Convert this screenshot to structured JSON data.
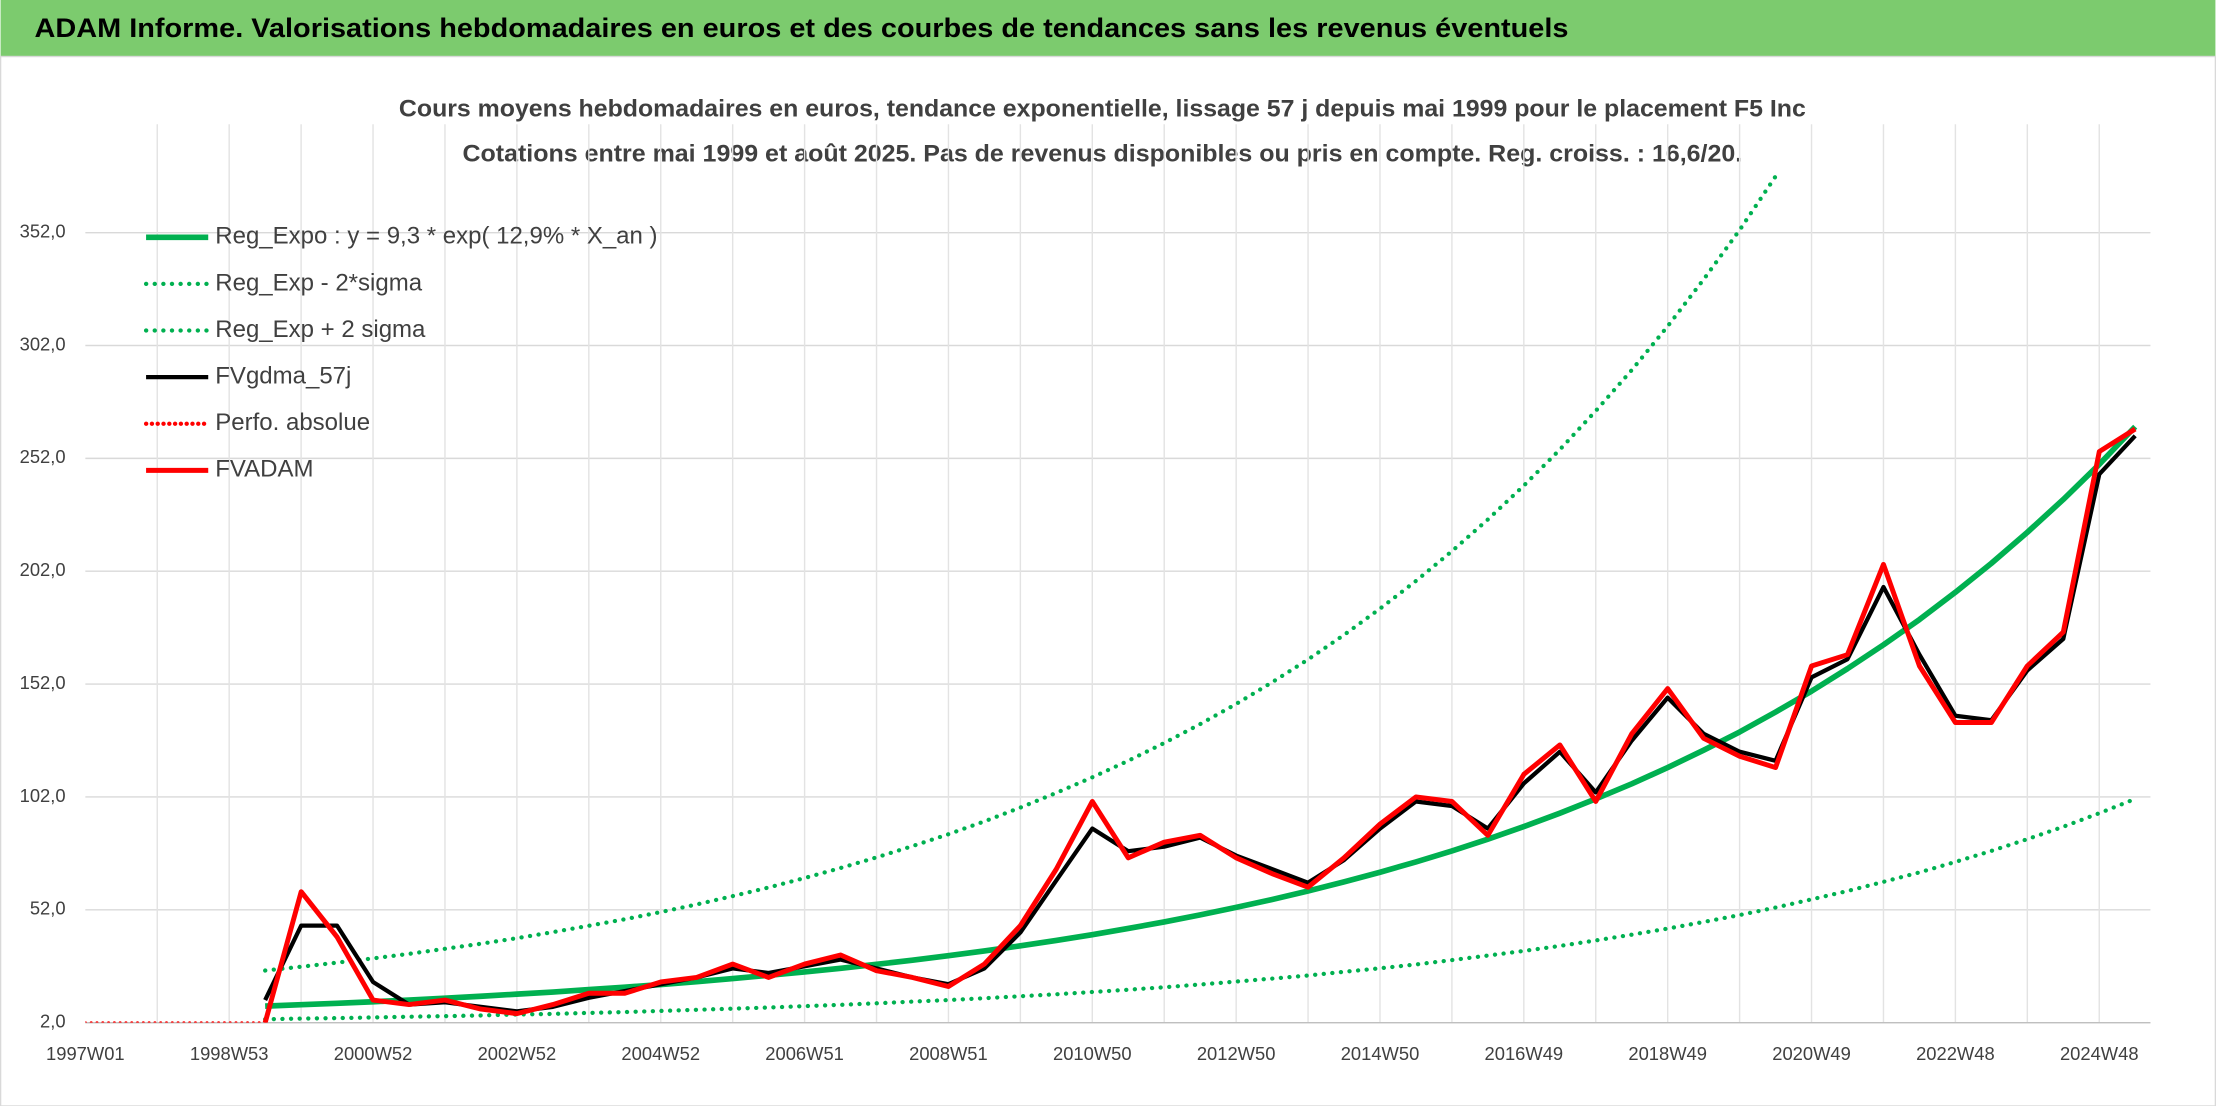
{
  "header": {
    "title": "ADAM Informe. Valorisations hebdomadaires en euros et des courbes de tendances sans les revenus éventuels"
  },
  "chart_data": {
    "type": "line",
    "title": "Cours moyens hebdomadaires en euros, tendance exponentielle, lissage 57 j depuis mai 1999 pour le placement F5 Inc",
    "subtitle": "Cotations entre mai 1999 et août 2025. Pas de revenus disponibles ou pris en compte. Reg. croiss. : 16,6/20.",
    "categories": [
      "1997W01",
      null,
      null,
      null,
      "1998W53",
      null,
      null,
      null,
      "2000W52",
      null,
      null,
      null,
      "2002W52",
      null,
      null,
      null,
      "2004W52",
      null,
      null,
      null,
      "2006W51",
      null,
      null,
      null,
      "2008W51",
      null,
      null,
      null,
      "2010W50",
      null,
      null,
      null,
      "2012W50",
      null,
      null,
      null,
      "2014W50",
      null,
      null,
      null,
      "2016W49",
      null,
      null,
      null,
      "2018W49",
      null,
      null,
      null,
      "2020W49",
      null,
      null,
      null,
      "2022W48",
      null,
      null,
      null,
      "2024W48",
      null
    ],
    "ylim": [
      2,
      400
    ],
    "yticks": [
      {
        "value": 2,
        "label": "2,0"
      },
      {
        "value": 52,
        "label": "52,0"
      },
      {
        "value": 102,
        "label": "102,0"
      },
      {
        "value": 152,
        "label": "152,0"
      },
      {
        "value": 202,
        "label": "202,0"
      },
      {
        "value": 252,
        "label": "252,0"
      },
      {
        "value": 302,
        "label": "302,0"
      },
      {
        "value": 352,
        "label": "352,0"
      }
    ],
    "grid": true,
    "legend": "top-left",
    "series": [
      {
        "name": "Reg_Expo : y = 9,3 * exp( 12,9% *  X_an )",
        "color": "#00b050",
        "dash": "solid",
        "width": 4,
        "values": [
          null,
          null,
          null,
          null,
          null,
          9.3,
          9.92,
          10.58,
          11.28,
          12.04,
          12.84,
          13.69,
          14.61,
          15.58,
          16.62,
          17.72,
          18.9,
          20.16,
          21.51,
          22.94,
          24.47,
          26.1,
          27.84,
          29.69,
          31.67,
          33.78,
          36.03,
          38.43,
          40.99,
          43.72,
          46.63,
          49.74,
          53.05,
          56.58,
          60.35,
          64.37,
          68.66,
          73.23,
          78.11,
          83.31,
          88.86,
          94.78,
          101.1,
          107.8,
          115,
          122.7,
          130.8,
          139.6,
          148.9,
          158.8,
          169.4,
          180.6,
          192.7,
          205.5,
          219.2,
          233.8,
          249.4,
          266
        ]
      },
      {
        "name": "Reg_Exp - 2*sigma",
        "color": "#00b050",
        "dash": "dotted",
        "width": 3,
        "values": [
          null,
          null,
          null,
          null,
          null,
          3.5,
          3.8,
          4.0,
          4.3,
          4.6,
          4.9,
          5.2,
          5.6,
          5.9,
          6.3,
          6.7,
          7.2,
          7.7,
          8.2,
          8.7,
          9.3,
          9.9,
          10.6,
          11.3,
          12.0,
          12.8,
          13.7,
          14.6,
          15.6,
          16.6,
          17.7,
          18.9,
          20.2,
          21.5,
          22.9,
          24.5,
          26.1,
          27.8,
          29.7,
          31.7,
          33.8,
          36.0,
          38.4,
          41.0,
          43.7,
          46.6,
          49.7,
          53.0,
          56.6,
          60.3,
          64.4,
          68.6,
          73.2,
          78.1,
          83.3,
          88.8,
          94.8,
          101.1
        ]
      },
      {
        "name": "Reg_Exp + 2 sigma",
        "color": "#00b050",
        "dash": "dotted",
        "width": 3,
        "values": [
          null,
          null,
          null,
          null,
          null,
          25.1,
          26.8,
          28.6,
          30.5,
          32.5,
          34.7,
          37.0,
          39.4,
          42.1,
          44.9,
          47.8,
          51.0,
          54.4,
          58.1,
          61.9,
          66.1,
          70.5,
          75.2,
          80.2,
          85.5,
          91.2,
          97.3,
          103.8,
          110.7,
          118.0,
          125.9,
          134.3,
          143.2,
          152.8,
          162.9,
          173.8,
          185.4,
          197.7,
          210.9,
          224.9,
          239.9,
          255.9,
          273.0,
          291.1,
          310.5,
          331.3,
          353.2,
          376.9,
          null,
          null,
          null,
          null,
          null,
          null,
          null,
          null,
          null,
          null
        ]
      },
      {
        "name": "FVgdma_57j",
        "color": "#000000",
        "dash": "solid",
        "width": 3,
        "values": [
          null,
          null,
          null,
          null,
          null,
          12,
          45,
          45,
          20,
          10,
          11,
          9,
          7,
          9,
          13,
          16,
          19,
          22,
          26,
          24,
          27,
          30,
          26,
          22,
          19,
          26,
          42,
          65,
          88,
          78,
          80,
          84,
          76,
          70,
          64,
          74,
          88,
          100,
          98,
          88,
          108,
          122,
          104,
          127,
          146,
          130,
          122,
          118,
          155,
          163,
          195,
          165,
          138,
          136,
          158,
          172,
          245,
          262
        ]
      },
      {
        "name": "Perfo. absolue",
        "color": "#ff0000",
        "dash": "dotted",
        "width": 2,
        "values": [
          2,
          2,
          2,
          2,
          2,
          2,
          null,
          null,
          null,
          null,
          null,
          null,
          null,
          null,
          null,
          null,
          null,
          null,
          null,
          null,
          null,
          null,
          null,
          null,
          null,
          null,
          null,
          null,
          null,
          null,
          null,
          null,
          null,
          null,
          null,
          null,
          null,
          null,
          null,
          null,
          null,
          null,
          null,
          null,
          null,
          null,
          null,
          null,
          null,
          null,
          null,
          null,
          null,
          null,
          null,
          null,
          null,
          null
        ]
      },
      {
        "name": "FVADAM",
        "color": "#ff0000",
        "dash": "solid",
        "width": 3.5,
        "values": [
          null,
          null,
          null,
          null,
          null,
          2,
          60,
          40,
          12,
          10,
          12,
          8,
          6,
          10,
          15,
          15,
          20,
          22,
          28,
          22,
          28,
          32,
          25,
          22,
          18,
          28,
          45,
          70,
          100,
          75,
          82,
          85,
          75,
          68,
          62,
          75,
          90,
          102,
          100,
          85,
          112,
          125,
          100,
          130,
          150,
          128,
          120,
          115,
          160,
          165,
          205,
          160,
          135,
          135,
          160,
          175,
          255,
          265
        ]
      }
    ]
  }
}
